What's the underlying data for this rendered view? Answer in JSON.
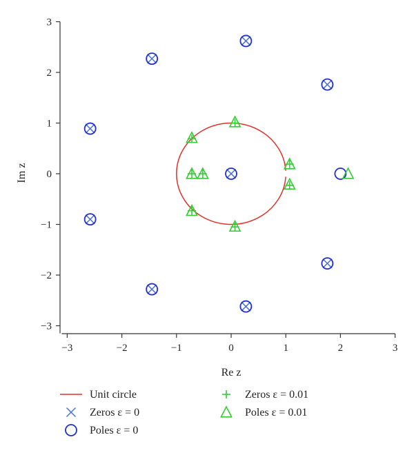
{
  "chart_data": {
    "type": "scatter",
    "xlabel": "Re z",
    "ylabel": "Im z",
    "xlim": [
      -3.1,
      3.0
    ],
    "ylim": [
      -3.15,
      3.0
    ],
    "xticks": [
      -3,
      -2,
      -1,
      0,
      1,
      2,
      3
    ],
    "yticks": [
      -3,
      -2,
      -1,
      0,
      1,
      2,
      3
    ],
    "grid": false,
    "legend_position": "bottom",
    "series": [
      {
        "name": "Unit circle",
        "marker": "line",
        "color": "#e0302a",
        "center": [
          0,
          0
        ],
        "radius": 1,
        "open_at": [
          1,
          0
        ]
      },
      {
        "name": "Zeros ε = 0",
        "marker": "x",
        "color": "#4a6fd8",
        "points": [
          [
            0.27,
            2.62
          ],
          [
            -1.45,
            2.27
          ],
          [
            1.76,
            1.76
          ],
          [
            -2.58,
            0.89
          ],
          [
            0,
            0
          ],
          [
            -2.58,
            -0.9
          ],
          [
            1.76,
            -1.77
          ],
          [
            -1.45,
            -2.28
          ],
          [
            0.27,
            -2.62
          ]
        ]
      },
      {
        "name": "Poles ε = 0",
        "marker": "circle",
        "color": "#1f2fd0",
        "points": [
          [
            0.27,
            2.62
          ],
          [
            -1.45,
            2.27
          ],
          [
            1.76,
            1.76
          ],
          [
            -2.58,
            0.89
          ],
          [
            0,
            0
          ],
          [
            2.0,
            0
          ],
          [
            -2.58,
            -0.9
          ],
          [
            1.76,
            -1.77
          ],
          [
            -1.45,
            -2.28
          ],
          [
            0.27,
            -2.62
          ]
        ]
      },
      {
        "name": "Zeros ε = 0.01",
        "marker": "plus",
        "color": "#33cc33",
        "points": [
          [
            0.07,
            1.0
          ],
          [
            -0.72,
            0.69
          ],
          [
            1.07,
            0.19
          ],
          [
            -0.72,
            0.0
          ],
          [
            -0.52,
            0.0
          ],
          [
            1.07,
            -0.23
          ],
          [
            -0.72,
            -0.73
          ],
          [
            0.07,
            -1.05
          ]
        ]
      },
      {
        "name": "Poles ε = 0.01",
        "marker": "triangle",
        "color": "#33cc33",
        "points": [
          [
            0.07,
            1.02
          ],
          [
            -0.72,
            0.71
          ],
          [
            1.07,
            0.19
          ],
          [
            -0.72,
            0.0
          ],
          [
            -0.52,
            0.0
          ],
          [
            2.14,
            0.0
          ],
          [
            1.07,
            -0.21
          ],
          [
            -0.72,
            -0.73
          ],
          [
            0.07,
            -1.04
          ]
        ]
      }
    ]
  }
}
